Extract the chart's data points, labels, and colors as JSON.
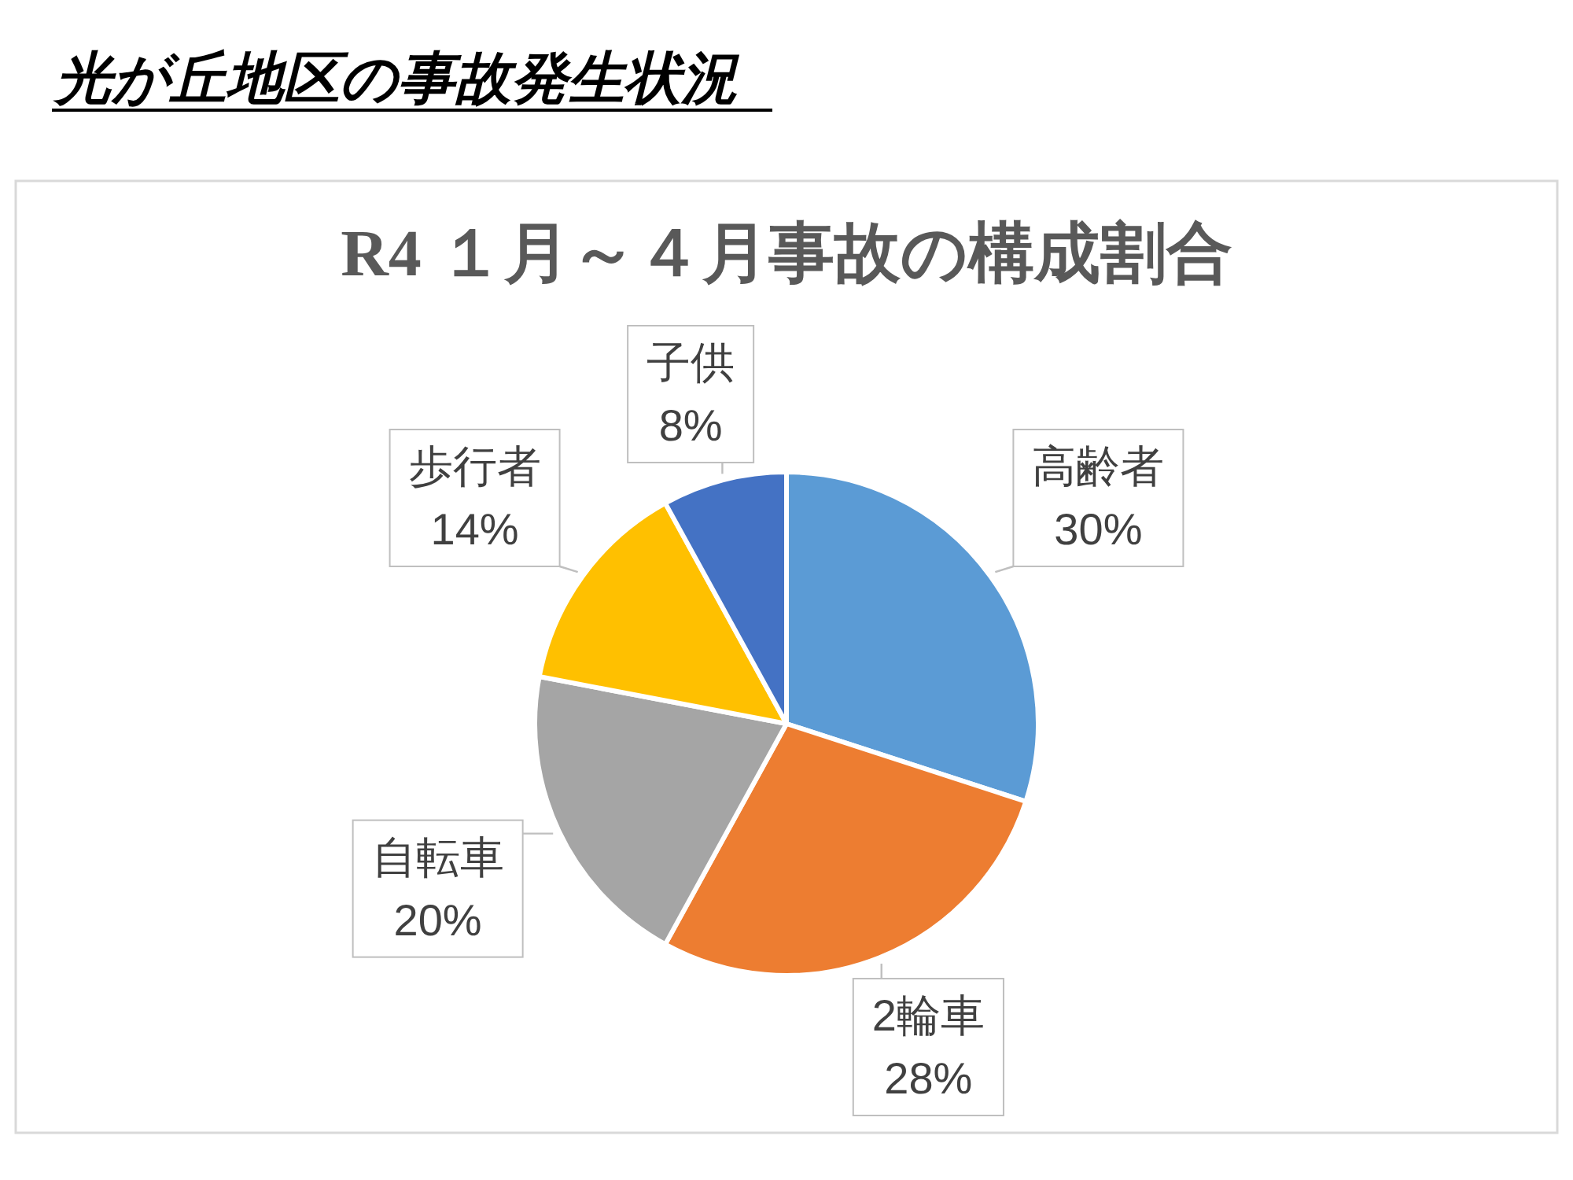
{
  "chart_data": {
    "type": "pie",
    "title": "光が丘地区の事故発生状況",
    "subtitle": "R4 １月～４月事故の構成割合",
    "categories": [
      "高齢者",
      "2輪車",
      "自転車",
      "歩行者",
      "子供"
    ],
    "values": [
      30,
      28,
      20,
      14,
      8
    ],
    "colors": [
      "#5b9bd5",
      "#ed7d31",
      "#a5a5a5",
      "#ffc000",
      "#4472c4"
    ],
    "value_labels": [
      "30%",
      "28%",
      "20%",
      "14%",
      "8%"
    ]
  }
}
